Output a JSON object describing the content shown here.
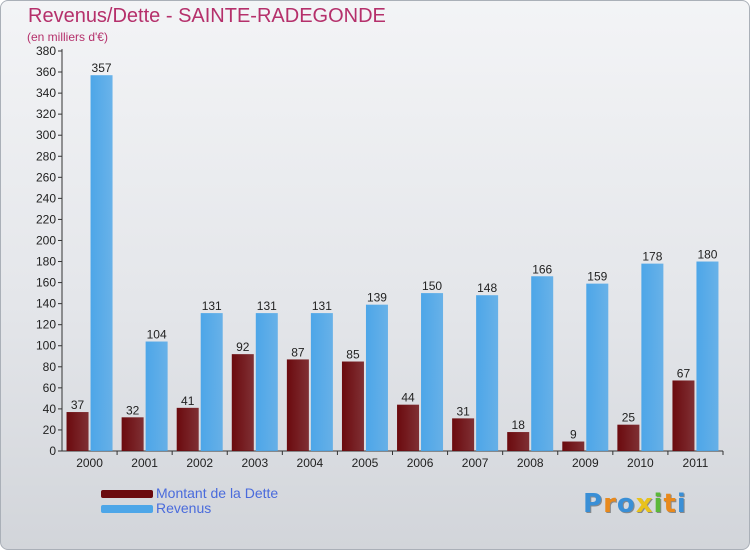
{
  "title": "Revenus/Dette - SAINTE-RADEGONDE",
  "subtitle": "(en milliers d'€)",
  "legend": {
    "items": [
      {
        "label": "Montant de la Dette",
        "color": "#6b0a0e"
      },
      {
        "label": "Revenus",
        "color": "#4da6e8"
      }
    ]
  },
  "logo": {
    "text": "Proxiti",
    "colors": [
      "#3a8fd6",
      "#e8891c",
      "#3a8fd6",
      "#e8c21c",
      "#5bb83a",
      "#e8891c",
      "#3a8fd6"
    ]
  },
  "chart_data": {
    "type": "bar",
    "categories": [
      "2000",
      "2001",
      "2002",
      "2003",
      "2004",
      "2005",
      "2006",
      "2007",
      "2008",
      "2009",
      "2010",
      "2011"
    ],
    "series": [
      {
        "name": "Montant de la Dette",
        "values": [
          37,
          32,
          41,
          92,
          87,
          85,
          44,
          31,
          18,
          9,
          25,
          67
        ],
        "color": "#6b0a0e"
      },
      {
        "name": "Revenus",
        "values": [
          357,
          104,
          131,
          131,
          131,
          139,
          150,
          148,
          166,
          159,
          178,
          180
        ],
        "color": "#4da6e8"
      }
    ],
    "ylim": [
      0,
      380
    ],
    "ytick_step": 20,
    "grid": false
  }
}
